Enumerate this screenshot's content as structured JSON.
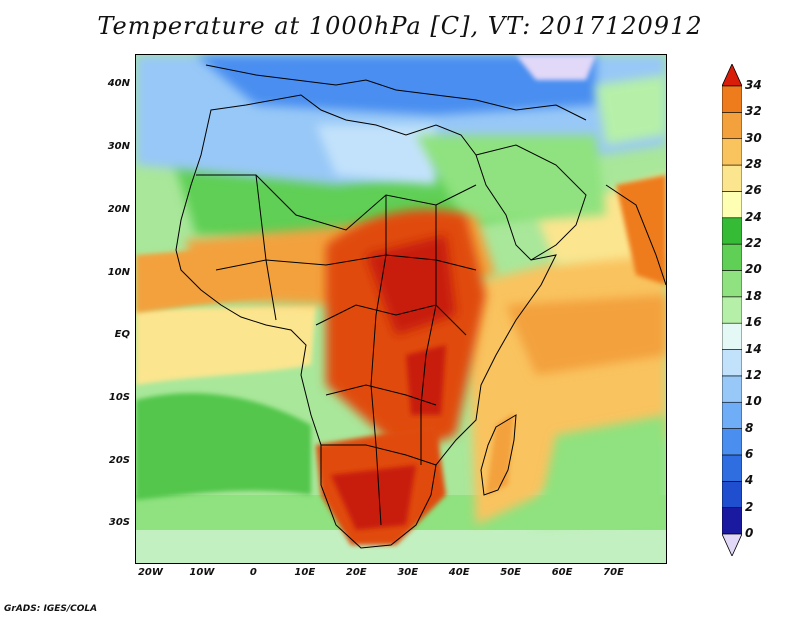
{
  "title": "Temperature at 1000hPa [C], VT: 2017120912",
  "credit": "GrADS: IGES/COLA",
  "map": {
    "lon_range": [
      -23,
      80
    ],
    "lat_range": [
      -36,
      45
    ],
    "lat_ticks": [
      "40N",
      "30N",
      "20N",
      "10N",
      "EQ",
      "10S",
      "20S",
      "30S"
    ],
    "lat_tick_values": [
      40,
      30,
      20,
      10,
      0,
      -10,
      -20,
      -30
    ],
    "lon_ticks": [
      "20W",
      "10W",
      "0",
      "10E",
      "20E",
      "30E",
      "40E",
      "50E",
      "60E",
      "70E"
    ],
    "lon_tick_values": [
      -20,
      -10,
      0,
      10,
      20,
      30,
      40,
      50,
      60,
      70
    ]
  },
  "colorbar": {
    "labels": [
      "0",
      "2",
      "4",
      "6",
      "8",
      "10",
      "12",
      "14",
      "16",
      "18",
      "20",
      "22",
      "24",
      "26",
      "28",
      "30",
      "32",
      "34"
    ],
    "colors": [
      "#1a1aa0",
      "#1f4fcf",
      "#2e6ee0",
      "#4a8ef0",
      "#6fadf7",
      "#98c8f7",
      "#c2e2fb",
      "#e4f8f6",
      "#b6f0a8",
      "#8fe27f",
      "#5fcf55",
      "#36bb36",
      "#ffffb4",
      "#fce58f",
      "#f9c35e",
      "#f3a13c",
      "#ee7b1c",
      "#e04b10",
      "#c81e08"
    ],
    "low_arrow_color": "#e2d8f8",
    "high_arrow_color": "#d81e08"
  }
}
